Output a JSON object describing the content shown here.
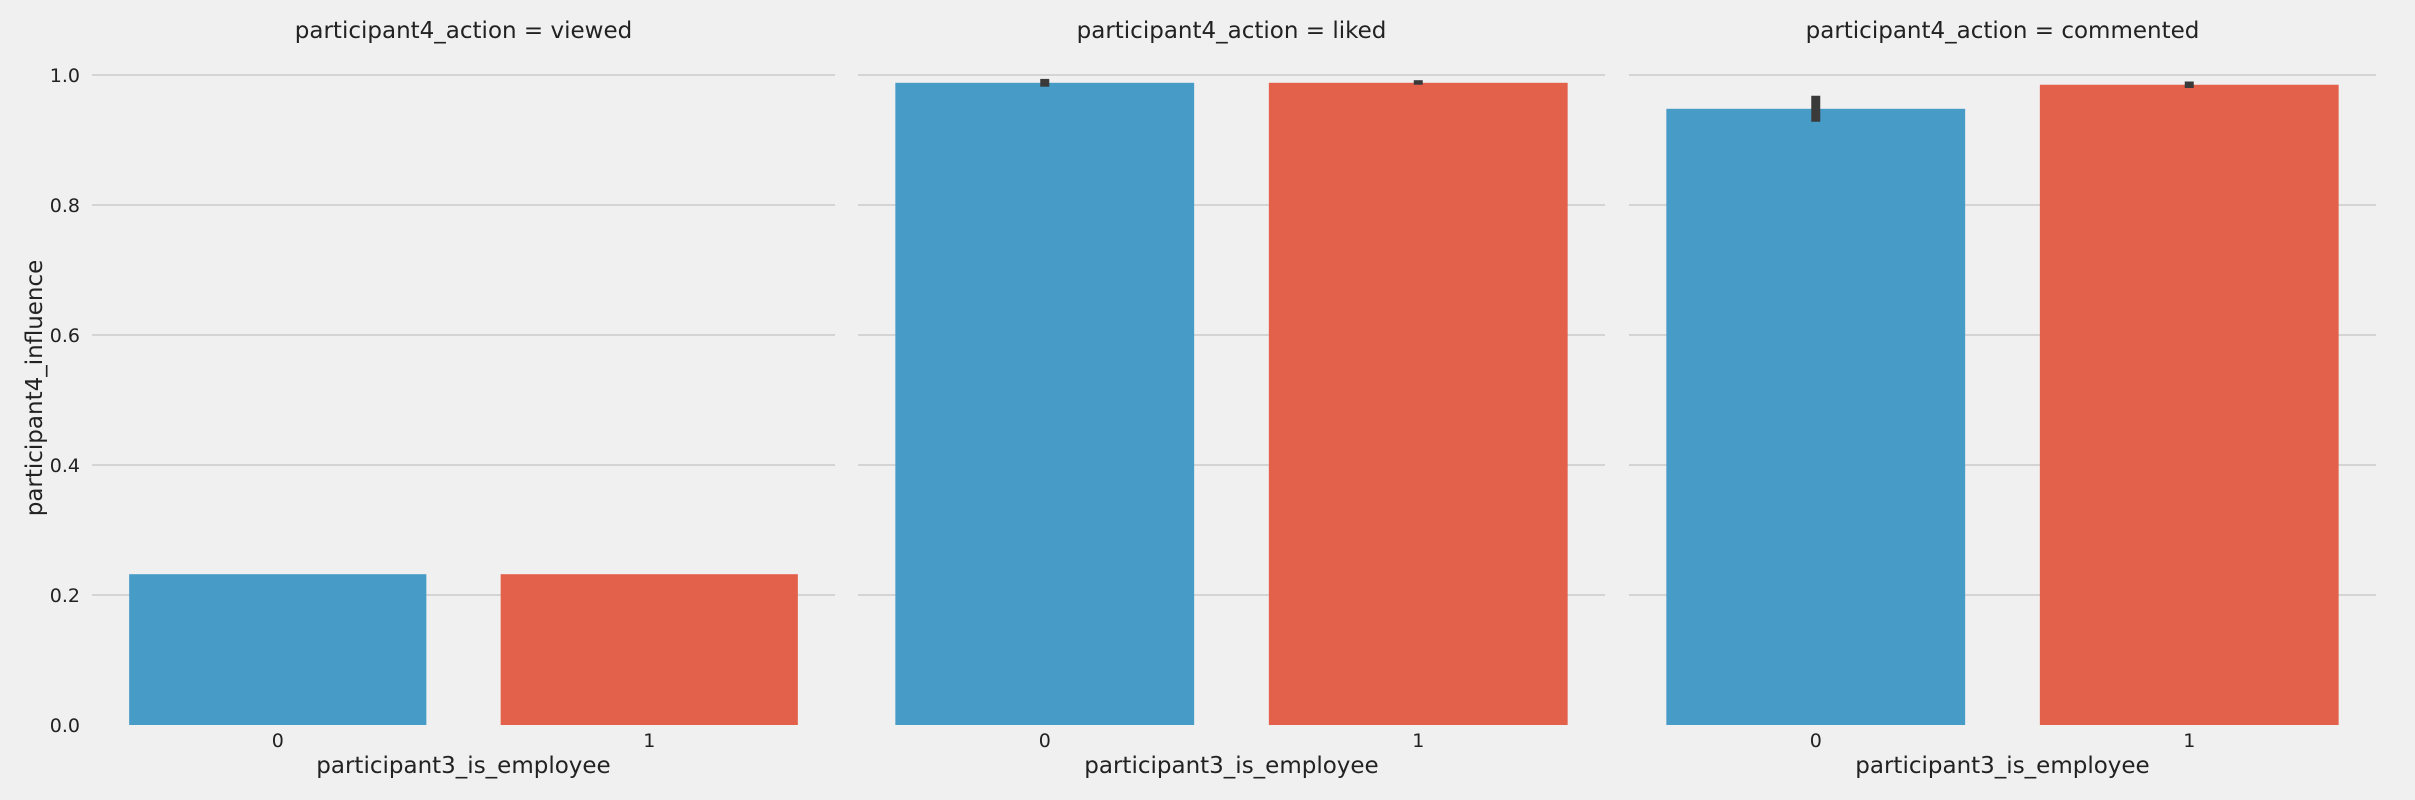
{
  "chart_data": {
    "type": "bar",
    "ylabel": "participant4_influence",
    "ylim": [
      0,
      1.0
    ],
    "yticks": [
      "0.0",
      "0.2",
      "0.4",
      "0.6",
      "0.8",
      "1.0"
    ],
    "grid": true,
    "colors": {
      "0": "#479bc7",
      "1": "#e3604b",
      "background": "#f0f0f0",
      "grid": "#cbcbcb",
      "errorbar": "#3a3a3a"
    },
    "facets": [
      {
        "title": "participant4_action = viewed",
        "xlabel": "participant3_is_employee",
        "categories": [
          "0",
          "1"
        ],
        "values": [
          0.232,
          0.232
        ],
        "error": [
          [
            0.232,
            0.232
          ],
          [
            0.232,
            0.232
          ]
        ]
      },
      {
        "title": "participant4_action = liked",
        "xlabel": "participant3_is_employee",
        "categories": [
          "0",
          "1"
        ],
        "values": [
          0.988,
          0.988
        ],
        "error": [
          [
            0.982,
            0.994
          ],
          [
            0.985,
            0.992
          ]
        ]
      },
      {
        "title": "participant4_action = commented",
        "xlabel": "participant3_is_employee",
        "categories": [
          "0",
          "1"
        ],
        "values": [
          0.948,
          0.985
        ],
        "error": [
          [
            0.928,
            0.968
          ],
          [
            0.98,
            0.99
          ]
        ]
      }
    ]
  }
}
